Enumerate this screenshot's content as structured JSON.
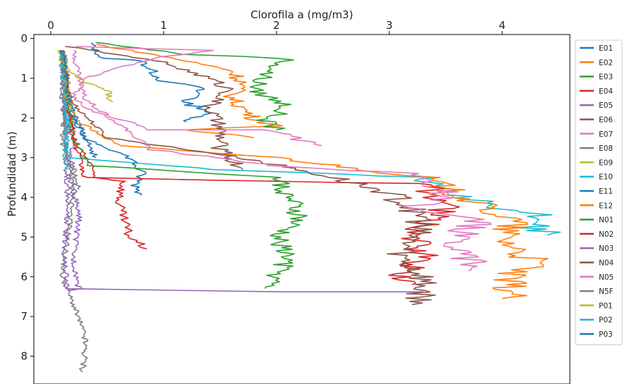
{
  "chart_data": {
    "type": "line",
    "xlabel": "Clorofila a (mg/m3)",
    "ylabel": "Profundidad (m)",
    "xlim": [
      -0.15,
      4.6
    ],
    "ylim": [
      8.7,
      -0.1
    ],
    "x_axis_position": "top",
    "y_inverted": true,
    "grid": false,
    "legend_position": "right",
    "x_ticks": [
      "0",
      "1",
      "2",
      "3",
      "4"
    ],
    "y_ticks": [
      "0",
      "1",
      "2",
      "3",
      "4",
      "5",
      "6",
      "7",
      "8"
    ],
    "series": [
      {
        "name": "E01",
        "color": "#1f77b4",
        "profile": [
          [
            0.35,
            0.1
          ],
          [
            0.45,
            0.5
          ],
          [
            0.8,
            0.55
          ],
          [
            1.0,
            1.1
          ],
          [
            1.3,
            1.2
          ],
          [
            1.3,
            1.5
          ],
          [
            1.15,
            1.6
          ],
          [
            1.4,
            1.8
          ],
          [
            1.3,
            2.0
          ],
          [
            1.2,
            2.1
          ]
        ]
      },
      {
        "name": "E02",
        "color": "#ff7f0e",
        "profile": [
          [
            0.4,
            0.15
          ],
          [
            1.0,
            0.45
          ],
          [
            1.6,
            0.8
          ],
          [
            1.7,
            1.1
          ],
          [
            1.6,
            1.5
          ],
          [
            1.8,
            2.0
          ],
          [
            2.0,
            2.2
          ],
          [
            1.2,
            2.3
          ],
          [
            1.8,
            2.5
          ]
        ]
      },
      {
        "name": "E03",
        "color": "#2ca02c",
        "profile": [
          [
            0.4,
            0.1
          ],
          [
            1.2,
            0.4
          ],
          [
            2.1,
            0.5
          ],
          [
            1.9,
            0.9
          ],
          [
            1.8,
            1.3
          ],
          [
            2.1,
            1.7
          ],
          [
            1.9,
            2.1
          ],
          [
            2.0,
            2.3
          ]
        ]
      },
      {
        "name": "E04",
        "color": "#d62728",
        "profile": [
          [
            0.1,
            0.4
          ],
          [
            0.15,
            1.0
          ],
          [
            0.12,
            1.8
          ],
          [
            0.2,
            2.6
          ],
          [
            0.3,
            2.9
          ],
          [
            0.4,
            3.5
          ],
          [
            0.65,
            3.6
          ],
          [
            0.6,
            4.1
          ],
          [
            0.65,
            4.6
          ],
          [
            0.7,
            5.0
          ],
          [
            0.85,
            5.3
          ]
        ]
      },
      {
        "name": "E05",
        "color": "#9467bd",
        "profile": [
          [
            0.12,
            0.4
          ],
          [
            0.15,
            1.5
          ],
          [
            0.2,
            2.5
          ],
          [
            0.18,
            3.5
          ],
          [
            0.25,
            4.5
          ],
          [
            0.2,
            5.5
          ],
          [
            0.25,
            6.3
          ],
          [
            0.15,
            6.35
          ]
        ]
      },
      {
        "name": "E06",
        "color": "#8c564b",
        "profile": [
          [
            0.15,
            0.2
          ],
          [
            1.0,
            0.6
          ],
          [
            1.4,
            1.0
          ],
          [
            1.6,
            1.3
          ],
          [
            1.4,
            1.7
          ],
          [
            1.5,
            2.3
          ],
          [
            1.5,
            2.8
          ],
          [
            1.7,
            3.3
          ]
        ]
      },
      {
        "name": "E07",
        "color": "#e377c2",
        "profile": [
          [
            0.2,
            0.2
          ],
          [
            1.4,
            0.3
          ],
          [
            0.9,
            0.5
          ],
          [
            0.3,
            1.0
          ],
          [
            0.2,
            1.5
          ],
          [
            0.35,
            1.8
          ],
          [
            0.9,
            2.3
          ],
          [
            1.9,
            2.3
          ],
          [
            2.4,
            2.7
          ]
        ]
      },
      {
        "name": "E08",
        "color": "#7f7f7f",
        "profile": [
          [
            0.1,
            0.3
          ],
          [
            0.1,
            1.5
          ],
          [
            0.15,
            3.0
          ],
          [
            0.2,
            4.0
          ],
          [
            0.15,
            5.0
          ],
          [
            0.1,
            6.0
          ],
          [
            0.2,
            6.7
          ],
          [
            0.3,
            7.5
          ],
          [
            0.3,
            8.0
          ],
          [
            0.28,
            8.4
          ]
        ]
      },
      {
        "name": "E09",
        "color": "#bcbd22",
        "profile": [
          [
            0.1,
            0.35
          ],
          [
            0.15,
            0.8
          ],
          [
            0.3,
            1.1
          ],
          [
            0.5,
            1.3
          ],
          [
            0.55,
            1.6
          ]
        ]
      },
      {
        "name": "E10",
        "color": "#17becf",
        "profile": [
          [
            0.1,
            0.3
          ],
          [
            0.12,
            1.5
          ],
          [
            0.15,
            3.0
          ],
          [
            1.5,
            3.3
          ],
          [
            3.3,
            3.5
          ],
          [
            3.8,
            4.1
          ],
          [
            4.0,
            4.3
          ],
          [
            4.3,
            4.4
          ],
          [
            4.2,
            4.6
          ],
          [
            4.3,
            4.8
          ],
          [
            4.4,
            4.95
          ]
        ]
      },
      {
        "name": "E11",
        "color": "#1f77b4",
        "profile": [
          [
            0.1,
            0.3
          ],
          [
            0.15,
            1.5
          ],
          [
            0.3,
            2.5
          ],
          [
            0.7,
            3.0
          ],
          [
            0.8,
            3.4
          ],
          [
            0.75,
            3.7
          ],
          [
            0.8,
            3.95
          ]
        ]
      },
      {
        "name": "E12",
        "color": "#ff7f0e",
        "profile": [
          [
            0.1,
            0.3
          ],
          [
            0.2,
            2.0
          ],
          [
            0.6,
            2.7
          ],
          [
            2.0,
            3.0
          ],
          [
            3.3,
            3.5
          ],
          [
            3.8,
            4.2
          ],
          [
            4.1,
            4.6
          ],
          [
            4.0,
            5.0
          ],
          [
            4.3,
            5.7
          ],
          [
            4.0,
            6.0
          ],
          [
            4.1,
            6.4
          ],
          [
            4.0,
            6.55
          ]
        ]
      },
      {
        "name": "N01",
        "color": "#2ca02c",
        "profile": [
          [
            0.1,
            0.3
          ],
          [
            0.15,
            1.5
          ],
          [
            0.2,
            2.5
          ],
          [
            0.35,
            3.2
          ],
          [
            2.0,
            3.5
          ],
          [
            2.1,
            4.0
          ],
          [
            2.2,
            4.5
          ],
          [
            2.0,
            5.0
          ],
          [
            2.1,
            5.5
          ],
          [
            2.0,
            6.0
          ],
          [
            1.9,
            6.3
          ]
        ]
      },
      {
        "name": "N02",
        "color": "#d62728",
        "profile": [
          [
            0.1,
            0.3
          ],
          [
            0.15,
            1.5
          ],
          [
            0.2,
            2.5
          ],
          [
            0.3,
            3.5
          ],
          [
            2.0,
            3.6
          ],
          [
            3.3,
            3.65
          ],
          [
            3.5,
            4.2
          ],
          [
            3.2,
            5.0
          ],
          [
            3.3,
            5.5
          ],
          [
            3.1,
            6.0
          ],
          [
            3.2,
            6.2
          ]
        ]
      },
      {
        "name": "N03",
        "color": "#9467bd",
        "profile": [
          [
            0.1,
            0.3
          ],
          [
            0.12,
            2.0
          ],
          [
            0.15,
            4.0
          ],
          [
            0.12,
            5.5
          ],
          [
            0.15,
            6.3
          ],
          [
            2.0,
            6.38
          ],
          [
            3.3,
            6.38
          ]
        ]
      },
      {
        "name": "N04",
        "color": "#8c564b",
        "profile": [
          [
            0.1,
            0.3
          ],
          [
            0.15,
            1.5
          ],
          [
            0.5,
            2.5
          ],
          [
            1.7,
            3.0
          ],
          [
            2.5,
            3.5
          ],
          [
            3.0,
            3.9
          ],
          [
            3.3,
            4.5
          ],
          [
            3.2,
            5.0
          ],
          [
            3.1,
            5.5
          ],
          [
            3.3,
            6.0
          ],
          [
            3.3,
            6.5
          ],
          [
            3.2,
            6.7
          ]
        ]
      },
      {
        "name": "N05",
        "color": "#e377c2",
        "profile": [
          [
            0.2,
            0.3
          ],
          [
            0.3,
            1.5
          ],
          [
            0.9,
            2.8
          ],
          [
            2.0,
            3.2
          ],
          [
            3.2,
            3.4
          ],
          [
            3.5,
            3.9
          ],
          [
            3.2,
            4.3
          ],
          [
            3.8,
            4.6
          ],
          [
            3.6,
            5.0
          ],
          [
            3.7,
            5.5
          ],
          [
            3.7,
            5.85
          ]
        ]
      },
      {
        "name": "N5F",
        "color": "#7f7f7f",
        "profile": [
          [
            0.1,
            0.3
          ],
          [
            0.15,
            1.0
          ],
          [
            0.12,
            2.0
          ],
          [
            0.1,
            2.7
          ],
          [
            0.2,
            3.3
          ],
          [
            0.25,
            3.8
          ]
        ]
      },
      {
        "name": "P01",
        "color": "#bcbd22",
        "profile": [
          [
            0.08,
            0.3
          ],
          [
            0.12,
            1.0
          ],
          [
            0.15,
            1.6
          ],
          [
            0.2,
            1.9
          ]
        ]
      },
      {
        "name": "P02",
        "color": "#17becf",
        "profile": [
          [
            0.1,
            0.3
          ],
          [
            0.12,
            1.2
          ],
          [
            0.15,
            2.2
          ],
          [
            0.12,
            3.0
          ],
          [
            0.15,
            3.3
          ]
        ]
      },
      {
        "name": "P03",
        "color": "#1f77b4",
        "profile": [
          [
            0.1,
            0.3
          ],
          [
            0.15,
            1.2
          ],
          [
            0.2,
            2.0
          ],
          [
            0.3,
            2.5
          ],
          [
            0.4,
            3.0
          ]
        ]
      }
    ]
  }
}
